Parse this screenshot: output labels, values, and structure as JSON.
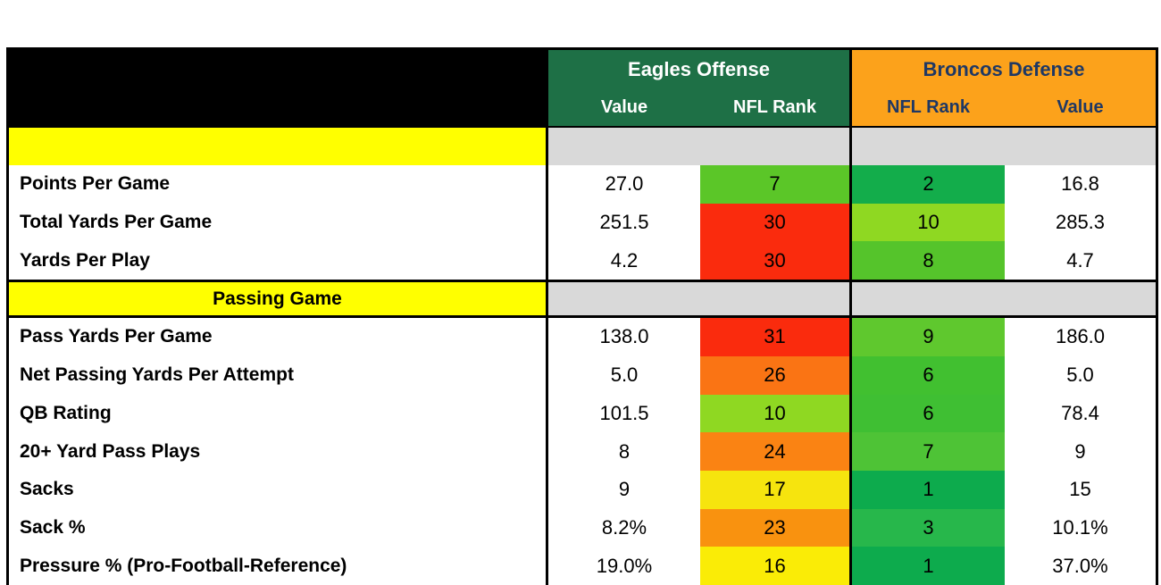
{
  "colors": {
    "eagles_green": "#1E7046",
    "broncos_orange": "#FCA21B",
    "broncos_navy": "#1F3864",
    "section_yellow": "#FFFF00",
    "section_gray": "#D9D9D9",
    "header_black": "#000000",
    "border_black": "#000000"
  },
  "table": {
    "header": {
      "eagles_title": "Eagles Offense",
      "broncos_title": "Broncos Defense",
      "eagles_cols": [
        "Value",
        "NFL Rank"
      ],
      "broncos_cols": [
        "NFL Rank",
        "Value"
      ]
    },
    "sections": [
      {
        "title": "",
        "rows": [
          {
            "label": "Points Per Game",
            "offense_value": "27.0",
            "offense_rank": "7",
            "offense_rank_color": "#5BC628",
            "defense_rank": "2",
            "defense_rank_color": "#13AD4B",
            "defense_value": "16.8"
          },
          {
            "label": "Total Yards Per Game",
            "offense_value": "251.5",
            "offense_rank": "30",
            "offense_rank_color": "#FA2B0D",
            "defense_rank": "10",
            "defense_rank_color": "#8FD822",
            "defense_value": "285.3"
          },
          {
            "label": "Yards Per Play",
            "offense_value": "4.2",
            "offense_rank": "30",
            "offense_rank_color": "#FA2B0D",
            "defense_rank": "8",
            "defense_rank_color": "#55C42B",
            "defense_value": "4.7"
          }
        ]
      },
      {
        "title": "Passing Game",
        "rows": [
          {
            "label": "Pass Yards Per Game",
            "offense_value": "138.0",
            "offense_rank": "31",
            "offense_rank_color": "#FA2B0D",
            "defense_rank": "9",
            "defense_rank_color": "#5FC82E",
            "defense_value": "186.0"
          },
          {
            "label": "Net Passing Yards Per Attempt",
            "offense_value": "5.0",
            "offense_rank": "26",
            "offense_rank_color": "#FA7414",
            "defense_rank": "6",
            "defense_rank_color": "#41C030",
            "defense_value": "5.0"
          },
          {
            "label": "QB Rating",
            "offense_value": "101.5",
            "offense_rank": "10",
            "offense_rank_color": "#8FD822",
            "defense_rank": "6",
            "defense_rank_color": "#3FBF33",
            "defense_value": "78.4"
          },
          {
            "label": "20+ Yard Pass Plays",
            "offense_value": "8",
            "offense_rank": "24",
            "offense_rank_color": "#FA8313",
            "defense_rank": "7",
            "defense_rank_color": "#4EC336",
            "defense_value": "9"
          },
          {
            "label": "Sacks",
            "offense_value": "9",
            "offense_rank": "17",
            "offense_rank_color": "#F6E40E",
            "defense_rank": "1",
            "defense_rank_color": "#0DAB4D",
            "defense_value": "15"
          },
          {
            "label": "Sack %",
            "offense_value": "8.2%",
            "offense_rank": "23",
            "offense_rank_color": "#F9920F",
            "defense_rank": "3",
            "defense_rank_color": "#27B74B",
            "defense_value": "10.1%"
          },
          {
            "label": "Pressure % (Pro-Football-Reference)",
            "offense_value": "19.0%",
            "offense_rank": "16",
            "offense_rank_color": "#FAEC06",
            "defense_rank": "1",
            "defense_rank_color": "#0DAB4D",
            "defense_value": "37.0%"
          }
        ]
      }
    ]
  }
}
